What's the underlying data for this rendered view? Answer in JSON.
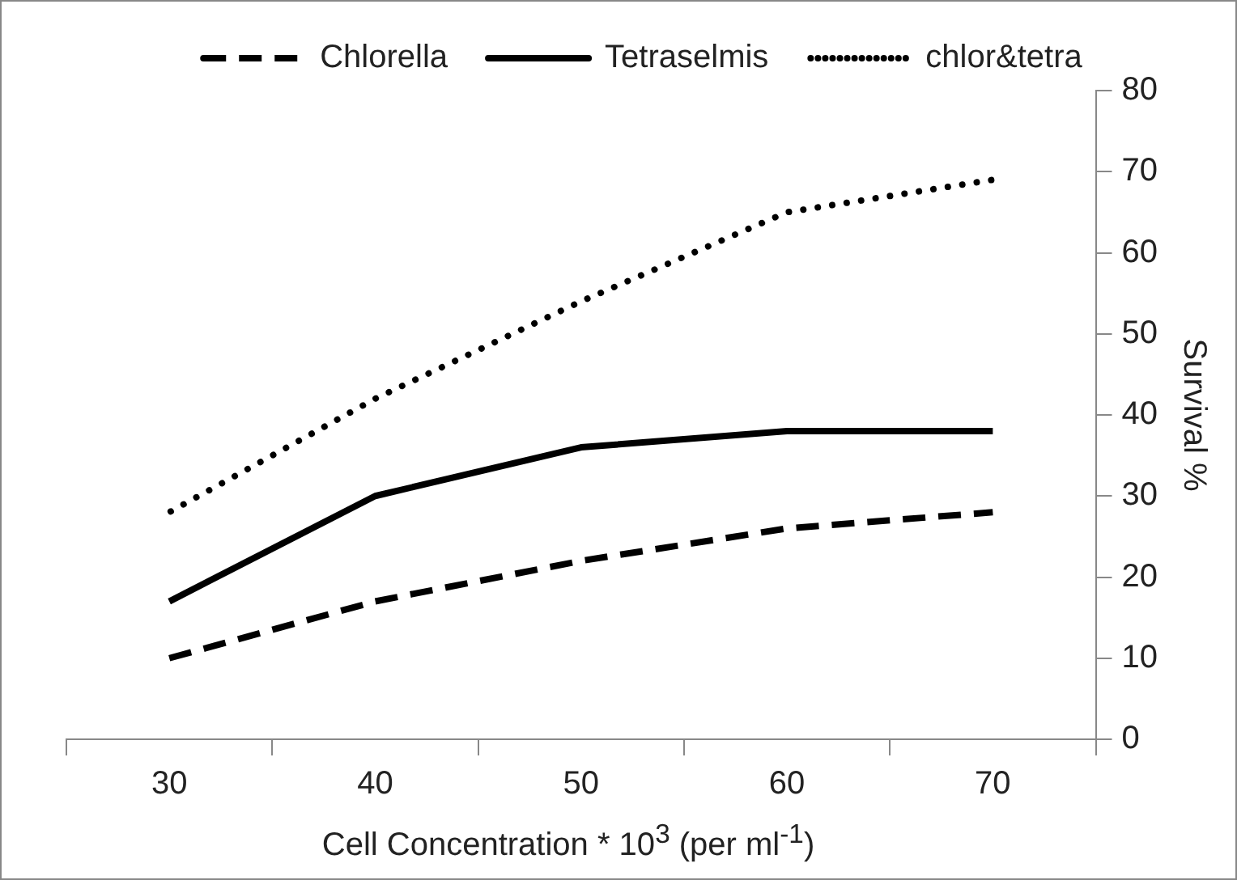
{
  "chart_data": {
    "type": "line",
    "xlabel": "Cell Concentration * 10$^{3}$ (per ml$^{-1}$)",
    "ylabel": "Survival %",
    "categories": [
      "30",
      "40",
      "50",
      "60",
      "70"
    ],
    "series": [
      {
        "name": "Chlorella",
        "color": "#000000",
        "line_style": "dashed",
        "values": [
          10,
          17,
          22,
          26,
          28
        ]
      },
      {
        "name": "Tetraselmis",
        "color": "#000000",
        "line_style": "solid",
        "values": [
          17,
          30,
          36,
          38,
          38
        ]
      },
      {
        "name": "chlor&tetra",
        "color": "#000000",
        "line_style": "dotted",
        "values": [
          28,
          42,
          54,
          65,
          69
        ]
      }
    ],
    "ylim": [
      0,
      80
    ],
    "yticks": [
      0,
      10,
      20,
      30,
      40,
      50,
      60,
      70,
      80
    ],
    "grid": false,
    "legend": "top",
    "marker": "none"
  }
}
